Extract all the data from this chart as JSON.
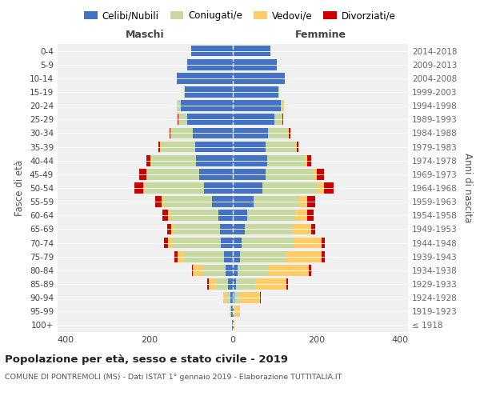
{
  "age_groups": [
    "100+",
    "95-99",
    "90-94",
    "85-89",
    "80-84",
    "75-79",
    "70-74",
    "65-69",
    "60-64",
    "55-59",
    "50-54",
    "45-49",
    "40-44",
    "35-39",
    "30-34",
    "25-29",
    "20-24",
    "15-19",
    "10-14",
    "5-9",
    "0-4"
  ],
  "birth_years": [
    "≤ 1918",
    "1919-1923",
    "1924-1928",
    "1929-1933",
    "1934-1938",
    "1939-1943",
    "1944-1948",
    "1949-1953",
    "1954-1958",
    "1959-1963",
    "1964-1968",
    "1969-1973",
    "1974-1978",
    "1979-1983",
    "1984-1988",
    "1989-1993",
    "1994-1998",
    "1999-2003",
    "2004-2008",
    "2009-2013",
    "2014-2018"
  ],
  "male_celibe": [
    2,
    3,
    5,
    12,
    18,
    22,
    28,
    30,
    35,
    50,
    70,
    80,
    88,
    90,
    95,
    110,
    125,
    115,
    135,
    110,
    100
  ],
  "male_coniugato": [
    0,
    2,
    8,
    28,
    55,
    95,
    115,
    110,
    115,
    115,
    140,
    125,
    108,
    82,
    52,
    18,
    8,
    2,
    0,
    0,
    0
  ],
  "male_vedovo": [
    0,
    3,
    10,
    18,
    22,
    15,
    12,
    8,
    5,
    5,
    5,
    3,
    2,
    2,
    2,
    2,
    2,
    0,
    0,
    0,
    0
  ],
  "male_divorziato": [
    0,
    0,
    0,
    3,
    3,
    8,
    10,
    10,
    14,
    16,
    20,
    16,
    10,
    5,
    2,
    2,
    0,
    0,
    0,
    0,
    0
  ],
  "female_celibe": [
    2,
    2,
    3,
    8,
    12,
    18,
    22,
    28,
    35,
    50,
    70,
    78,
    82,
    78,
    85,
    100,
    115,
    110,
    125,
    105,
    90
  ],
  "female_coniugato": [
    0,
    4,
    15,
    45,
    75,
    110,
    125,
    115,
    115,
    110,
    135,
    115,
    92,
    72,
    48,
    16,
    6,
    2,
    0,
    0,
    0
  ],
  "female_vedova": [
    2,
    12,
    48,
    75,
    95,
    85,
    65,
    45,
    28,
    18,
    14,
    9,
    5,
    3,
    2,
    2,
    2,
    0,
    0,
    0,
    0
  ],
  "female_divorziata": [
    0,
    0,
    2,
    4,
    5,
    8,
    8,
    10,
    16,
    20,
    23,
    16,
    9,
    4,
    3,
    2,
    0,
    0,
    0,
    0,
    0
  ],
  "color_celibe": "#4472C4",
  "color_coniugato": "#C5D9A0",
  "color_vedovo": "#FFCC66",
  "color_divorziato": "#CC0000",
  "xlim": 420,
  "title_main": "Popolazione per età, sesso e stato civile - 2019",
  "title_sub": "COMUNE DI PONTREMOLI (MS) - Dati ISTAT 1° gennaio 2019 - Elaborazione TUTTITALIA.IT",
  "label_maschi": "Maschi",
  "label_femmine": "Femmine",
  "label_fascia": "Fasce di età",
  "label_anni": "Anni di nascita",
  "legend_items": [
    "Celibi/Nubili",
    "Coniugati/e",
    "Vedovi/e",
    "Divorziati/e"
  ],
  "bg_color": "#FFFFFF",
  "plot_bg_color": "#F0F0F0",
  "grid_color": "#CCCCCC"
}
